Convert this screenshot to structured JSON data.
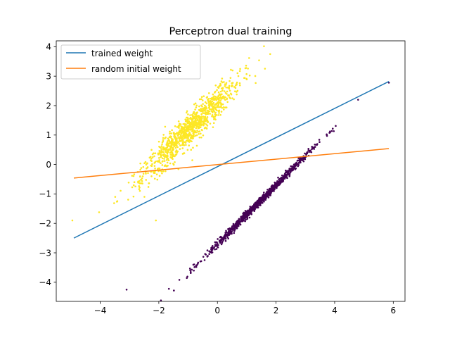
{
  "chart_data": {
    "type": "scatter",
    "title": "Perceptron dual training",
    "xlabel": "",
    "ylabel": "",
    "xlim": [
      -5.5,
      6.4
    ],
    "ylim": [
      -4.65,
      4.2
    ],
    "xticks": [
      -4,
      -2,
      0,
      2,
      4,
      6
    ],
    "yticks": [
      -4,
      -3,
      -2,
      -1,
      0,
      1,
      2,
      3,
      4
    ],
    "grid": false,
    "legend_position": "top-left",
    "lines": [
      {
        "name": "trained weight",
        "color": "#1f77b4",
        "x": [
          -4.9,
          5.85
        ],
        "y": [
          -2.5,
          2.82
        ]
      },
      {
        "name": "random initial weight",
        "color": "#ff7f0e",
        "x": [
          -4.9,
          5.85
        ],
        "y": [
          -0.46,
          0.54
        ]
      }
    ],
    "scatter_clusters": [
      {
        "color": "#fde725",
        "count": 1000,
        "center": [
          -0.95,
          1.2
        ],
        "principal_std": 1.2,
        "orthogonal_std": 0.2,
        "slope": 1.02,
        "outliers": [
          [
            -4.95,
            -1.9
          ],
          [
            -2.1,
            -1.9
          ],
          [
            1.8,
            3.75
          ]
        ]
      },
      {
        "color": "#440154",
        "count": 1000,
        "center": [
          1.4,
          -1.3
        ],
        "principal_std": 1.25,
        "orthogonal_std": 0.045,
        "slope": 1.0,
        "outliers": [
          [
            -3.1,
            -4.25
          ],
          [
            4.8,
            2.2
          ],
          [
            5.85,
            2.78
          ]
        ]
      }
    ]
  }
}
